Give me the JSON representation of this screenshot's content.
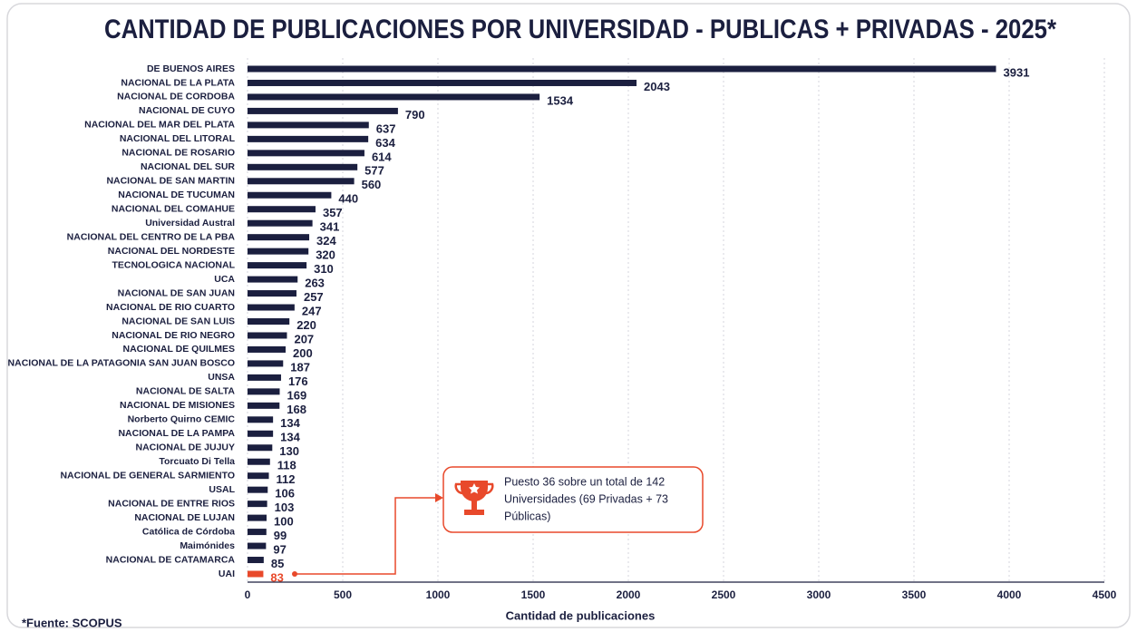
{
  "chart_data": {
    "type": "bar",
    "orientation": "horizontal",
    "title": "CANTIDAD DE PUBLICACIONES POR UNIVERSIDAD - PUBLICAS + PRIVADAS - 2025*",
    "categories": [
      "DE BUENOS AIRES",
      "NACIONAL DE LA PLATA",
      "NACIONAL DE CORDOBA",
      "NACIONAL DE CUYO",
      "NACIONAL DEL MAR DEL PLATA",
      "NACIONAL DEL LITORAL",
      "NACIONAL DE ROSARIO",
      "NACIONAL DEL SUR",
      "NACIONAL DE SAN MARTIN",
      "NACIONAL DE TUCUMAN",
      "NACIONAL DEL COMAHUE",
      "Universidad Austral",
      "NACIONAL DEL CENTRO DE LA PBA",
      "NACIONAL DEL NORDESTE",
      "TECNOLOGICA NACIONAL",
      "UCA",
      "NACIONAL DE SAN JUAN",
      "NACIONAL DE RIO CUARTO",
      "NACIONAL DE SAN LUIS",
      "NACIONAL DE RIO NEGRO",
      "NACIONAL DE QUILMES",
      "NACIONAL DE LA PATAGONIA SAN JUAN BOSCO",
      "UNSA",
      "NACIONAL DE SALTA",
      "NACIONAL DE MISIONES",
      "Norberto Quirno CEMIC",
      "NACIONAL DE LA PAMPA",
      "NACIONAL DE JUJUY",
      "Torcuato Di Tella",
      "NACIONAL DE GENERAL SARMIENTO",
      "USAL",
      "NACIONAL DE ENTRE RIOS",
      "NACIONAL DE LUJAN",
      "Católica de Córdoba",
      "Maimónides",
      "NACIONAL DE CATAMARCA",
      "UAI"
    ],
    "values": [
      3931,
      2043,
      1534,
      790,
      637,
      634,
      614,
      577,
      560,
      440,
      357,
      341,
      324,
      320,
      310,
      263,
      257,
      247,
      220,
      207,
      200,
      187,
      176,
      169,
      168,
      134,
      134,
      130,
      118,
      112,
      106,
      103,
      100,
      99,
      97,
      85,
      83
    ],
    "color": "#1b1f3f",
    "highlight": {
      "category": "UAI",
      "color": "#e8492b"
    },
    "xlim": [
      0,
      4500
    ],
    "xticks": [
      0,
      500,
      1000,
      1500,
      2000,
      2500,
      3000,
      3500,
      4000,
      4500
    ],
    "xlabel": "Cantidad de publicaciones",
    "grid": true,
    "annotation": [
      "Puesto 36 sobre un total de 142",
      "Universidades (69 Privadas + 73",
      "Públicas)"
    ],
    "source": "*Fuente: SCOPUS"
  }
}
